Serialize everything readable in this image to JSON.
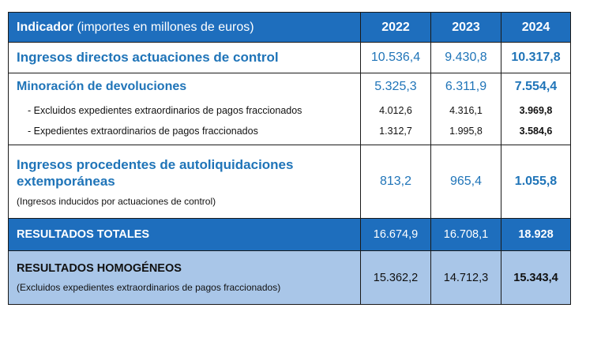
{
  "header": {
    "indicator": "Indicador",
    "indicator_note": "(importes en millones de euros)",
    "years": [
      "2022",
      "2023",
      "2024"
    ]
  },
  "rows": {
    "ingresos_directos": {
      "label": "Ingresos directos actuaciones de control",
      "values": [
        "10.536,4",
        "9.430,8",
        "10.317,8"
      ]
    },
    "minoracion": {
      "label": "Minoración de devoluciones",
      "values": [
        "5.325,3",
        "6.311,9",
        "7.554,4"
      ],
      "sub": [
        {
          "label": "- Excluidos expedientes extraordinarios de pagos fraccionados",
          "values": [
            "4.012,6",
            "4.316,1",
            "3.969,8"
          ]
        },
        {
          "label": "- Expedientes extraordinarios de pagos fraccionados",
          "values": [
            "1.312,7",
            "1.995,8",
            "3.584,6"
          ]
        }
      ]
    },
    "autoliquidaciones": {
      "label_line1": "Ingresos procedentes de autoliquidaciones",
      "label_line2": "extemporáneas",
      "note": "(Ingresos inducidos por actuaciones de control)",
      "values": [
        "813,2",
        "965,4",
        "1.055,8"
      ]
    },
    "totales": {
      "label": "RESULTADOS TOTALES",
      "values": [
        "16.674,9",
        "16.708,1",
        "18.928"
      ]
    },
    "homogeneos": {
      "label": "RESULTADOS HOMOGÉNEOS",
      "note": "(Excluidos expedientes extraordinarios de pagos fraccionados)",
      "values": [
        "15.362,2",
        "14.712,3",
        "15.343,4"
      ]
    }
  },
  "colors": {
    "header_blue": "#1e6ebd",
    "text_blue": "#1f74b8",
    "homog_bg": "#a9c6e8"
  }
}
